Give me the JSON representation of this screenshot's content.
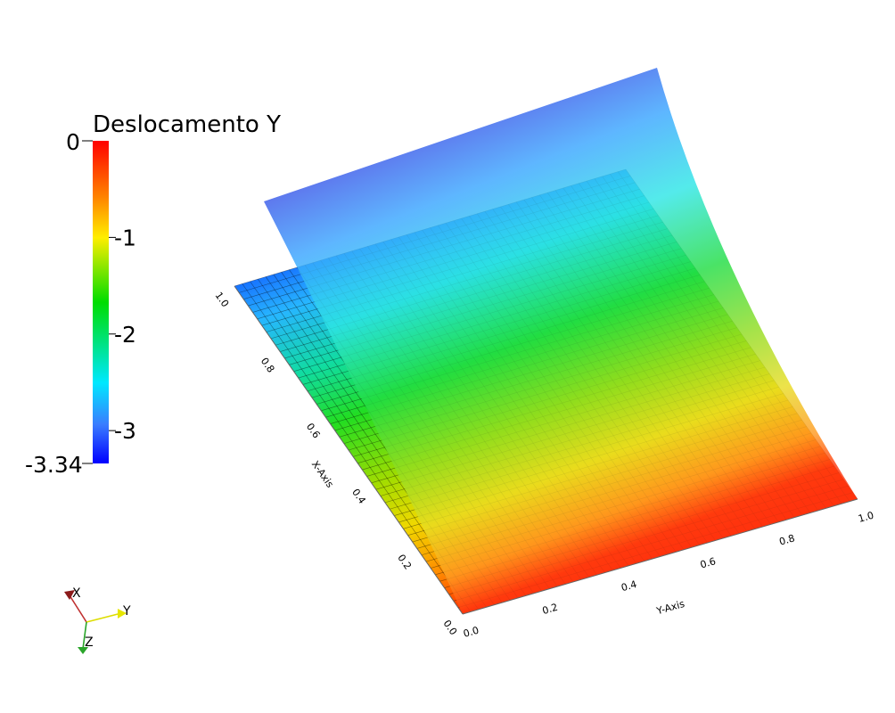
{
  "legend": {
    "title": "Deslocamento Y",
    "max_label": "0",
    "min_label": "-3.34",
    "ticks": [
      "-1",
      "-2",
      "-3"
    ],
    "range": [
      -3.34,
      0
    ],
    "colormap": [
      "#0000ff",
      "#00e0ff",
      "#00e000",
      "#ffff00",
      "#ff0000"
    ]
  },
  "x_axis": {
    "title": "X-Axis",
    "ticks": [
      "0.0",
      "0.2",
      "0.4",
      "0.6",
      "0.8",
      "1.0"
    ]
  },
  "y_axis": {
    "title": "Y-Axis",
    "ticks": [
      "0.0",
      "0.2",
      "0.4",
      "0.6",
      "0.8",
      "1.0"
    ]
  },
  "orientation_triad": {
    "x_label": "X",
    "y_label": "Y",
    "z_label": "Z",
    "x_color": "#8b1a1a",
    "y_color": "#e6e600",
    "z_color": "#2aa52a"
  }
}
